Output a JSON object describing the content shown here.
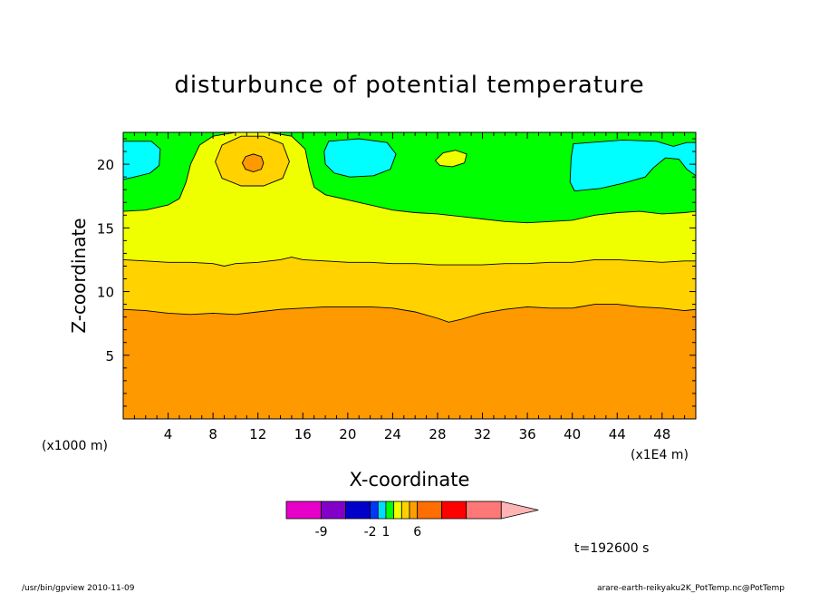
{
  "chart_data": {
    "type": "heatmap",
    "title": "disturbunce of potential temperature",
    "xlabel": "X-coordinate",
    "ylabel": "Z-coordinate",
    "x_unit_left": "(x1000 m)",
    "x_unit_right": "(x1E4 m)",
    "xlim": [
      0,
      51
    ],
    "ylim": [
      0,
      22.5
    ],
    "x_ticks": [
      4,
      8,
      12,
      16,
      20,
      24,
      28,
      32,
      36,
      40,
      44,
      48
    ],
    "x_tick_labels": [
      "4",
      "8",
      "12",
      "16",
      "20",
      "24",
      "28",
      "32",
      "36",
      "40",
      "44",
      "48"
    ],
    "y_ticks": [
      5,
      10,
      15,
      20
    ],
    "y_tick_labels": [
      "5",
      "10",
      "15",
      "20"
    ],
    "background_level_color": "#ff9900",
    "bands": [
      {
        "color": "#ffd200",
        "bottom": [
          [
            0,
            8.6
          ],
          [
            2,
            8.5
          ],
          [
            4,
            8.3
          ],
          [
            6,
            8.2
          ],
          [
            8,
            8.3
          ],
          [
            10,
            8.2
          ],
          [
            12,
            8.4
          ],
          [
            14,
            8.6
          ],
          [
            16,
            8.7
          ],
          [
            18,
            8.8
          ],
          [
            20,
            8.8
          ],
          [
            22,
            8.8
          ],
          [
            24,
            8.7
          ],
          [
            26,
            8.4
          ],
          [
            28,
            7.9
          ],
          [
            29,
            7.6
          ],
          [
            30,
            7.8
          ],
          [
            32,
            8.3
          ],
          [
            34,
            8.6
          ],
          [
            36,
            8.8
          ],
          [
            38,
            8.7
          ],
          [
            40,
            8.7
          ],
          [
            42,
            9.0
          ],
          [
            44,
            9.0
          ],
          [
            46,
            8.8
          ],
          [
            48,
            8.7
          ],
          [
            50,
            8.5
          ],
          [
            51,
            8.6
          ]
        ]
      },
      {
        "color": "#f0ff00",
        "bottom": [
          [
            0,
            12.5
          ],
          [
            2,
            12.4
          ],
          [
            4,
            12.3
          ],
          [
            6,
            12.3
          ],
          [
            8,
            12.2
          ],
          [
            9,
            12.0
          ],
          [
            10,
            12.2
          ],
          [
            12,
            12.3
          ],
          [
            14,
            12.5
          ],
          [
            15,
            12.7
          ],
          [
            16,
            12.5
          ],
          [
            18,
            12.4
          ],
          [
            20,
            12.3
          ],
          [
            22,
            12.3
          ],
          [
            24,
            12.2
          ],
          [
            26,
            12.2
          ],
          [
            28,
            12.1
          ],
          [
            30,
            12.1
          ],
          [
            32,
            12.1
          ],
          [
            34,
            12.2
          ],
          [
            36,
            12.2
          ],
          [
            38,
            12.3
          ],
          [
            40,
            12.3
          ],
          [
            42,
            12.5
          ],
          [
            44,
            12.5
          ],
          [
            46,
            12.4
          ],
          [
            48,
            12.3
          ],
          [
            50,
            12.4
          ],
          [
            51,
            12.4
          ]
        ]
      },
      {
        "color": "#00ff00",
        "bottom": [
          [
            0,
            16.3
          ],
          [
            2,
            16.4
          ],
          [
            4,
            16.8
          ],
          [
            5,
            17.3
          ],
          [
            5.6,
            18.6
          ],
          [
            6,
            20.0
          ],
          [
            6.8,
            21.5
          ],
          [
            8,
            22.2
          ],
          [
            10,
            22.5
          ],
          [
            11.5,
            22.5
          ],
          [
            13,
            22.5
          ],
          [
            15,
            22.2
          ],
          [
            16.2,
            21.2
          ],
          [
            16.6,
            19.5
          ],
          [
            17,
            18.2
          ],
          [
            18,
            17.6
          ],
          [
            20,
            17.2
          ],
          [
            22,
            16.8
          ],
          [
            24,
            16.4
          ],
          [
            26,
            16.2
          ],
          [
            28,
            16.1
          ],
          [
            30,
            15.9
          ],
          [
            32,
            15.7
          ],
          [
            34,
            15.5
          ],
          [
            36,
            15.4
          ],
          [
            38,
            15.5
          ],
          [
            40,
            15.6
          ],
          [
            42,
            16.0
          ],
          [
            44,
            16.2
          ],
          [
            46,
            16.3
          ],
          [
            48,
            16.1
          ],
          [
            50,
            16.2
          ],
          [
            51,
            16.3
          ]
        ]
      }
    ],
    "regions": [
      {
        "color": "#ffd200",
        "points": [
          [
            8.2,
            20.2
          ],
          [
            8.8,
            21.5
          ],
          [
            10.5,
            22.2
          ],
          [
            12.5,
            22.2
          ],
          [
            14.2,
            21.6
          ],
          [
            14.8,
            20.2
          ],
          [
            14.2,
            18.9
          ],
          [
            12.5,
            18.3
          ],
          [
            10.5,
            18.3
          ],
          [
            8.8,
            18.9
          ]
        ]
      },
      {
        "color": "#ff9900",
        "points": [
          [
            10.6,
            20.1
          ],
          [
            10.9,
            20.6
          ],
          [
            11.6,
            20.8
          ],
          [
            12.3,
            20.6
          ],
          [
            12.5,
            20.1
          ],
          [
            12.3,
            19.6
          ],
          [
            11.6,
            19.4
          ],
          [
            10.9,
            19.6
          ]
        ]
      },
      {
        "color": "#f0ff00",
        "points": [
          [
            27.8,
            20.3
          ],
          [
            28.5,
            20.9
          ],
          [
            29.6,
            21.1
          ],
          [
            30.6,
            20.8
          ],
          [
            30.4,
            20.1
          ],
          [
            29.3,
            19.8
          ],
          [
            28.2,
            19.9
          ]
        ]
      },
      {
        "color": "#00ffff",
        "points": [
          [
            0,
            21.8
          ],
          [
            2.5,
            21.8
          ],
          [
            3.3,
            21.2
          ],
          [
            3.2,
            19.9
          ],
          [
            2.4,
            19.3
          ],
          [
            1.0,
            19.0
          ],
          [
            0,
            18.8
          ]
        ]
      },
      {
        "color": "#00ffff",
        "points": [
          [
            18.3,
            21.8
          ],
          [
            21.0,
            22.0
          ],
          [
            23.5,
            21.7
          ],
          [
            24.3,
            20.8
          ],
          [
            23.8,
            19.6
          ],
          [
            22.3,
            19.1
          ],
          [
            20.2,
            19.0
          ],
          [
            18.8,
            19.3
          ],
          [
            18.0,
            20.0
          ],
          [
            17.9,
            21.0
          ]
        ]
      },
      {
        "color": "#00ffff",
        "points": [
          [
            40.1,
            21.6
          ],
          [
            44.5,
            21.9
          ],
          [
            47.5,
            21.8
          ],
          [
            49.0,
            21.4
          ],
          [
            50.2,
            21.7
          ],
          [
            51,
            21.7
          ],
          [
            51,
            19.1
          ],
          [
            50.2,
            19.6
          ],
          [
            49.5,
            20.4
          ],
          [
            48.3,
            20.5
          ],
          [
            47.2,
            19.7
          ],
          [
            46.5,
            19.0
          ],
          [
            44.5,
            18.5
          ],
          [
            42.5,
            18.1
          ],
          [
            40.2,
            17.9
          ],
          [
            39.8,
            18.6
          ],
          [
            39.9,
            20.5
          ]
        ]
      }
    ],
    "colorbar": {
      "colors": [
        "#e600c8",
        "#8200c8",
        "#0000c8",
        "#0037ff",
        "#00dcff",
        "#00ff00",
        "#f0ff00",
        "#ffd200",
        "#ffa000",
        "#ff6e00",
        "#ff0000",
        "#ff7878",
        "#ffb4b4"
      ],
      "relative_widths": [
        2,
        1.4,
        1.4,
        0.45,
        0.45,
        0.45,
        0.45,
        0.45,
        0.45,
        1.4,
        1.4,
        2,
        1.8
      ],
      "labels": [
        "-9",
        "-2",
        "1",
        "6"
      ],
      "label_after_segment": [
        1,
        3,
        5,
        9
      ]
    },
    "time_label": "t=192600 s"
  },
  "footer": {
    "left": "/usr/bin/gpview   2010-11-09",
    "right": "arare-earth-reikyaku2K_PotTemp.nc@PotTemp"
  }
}
